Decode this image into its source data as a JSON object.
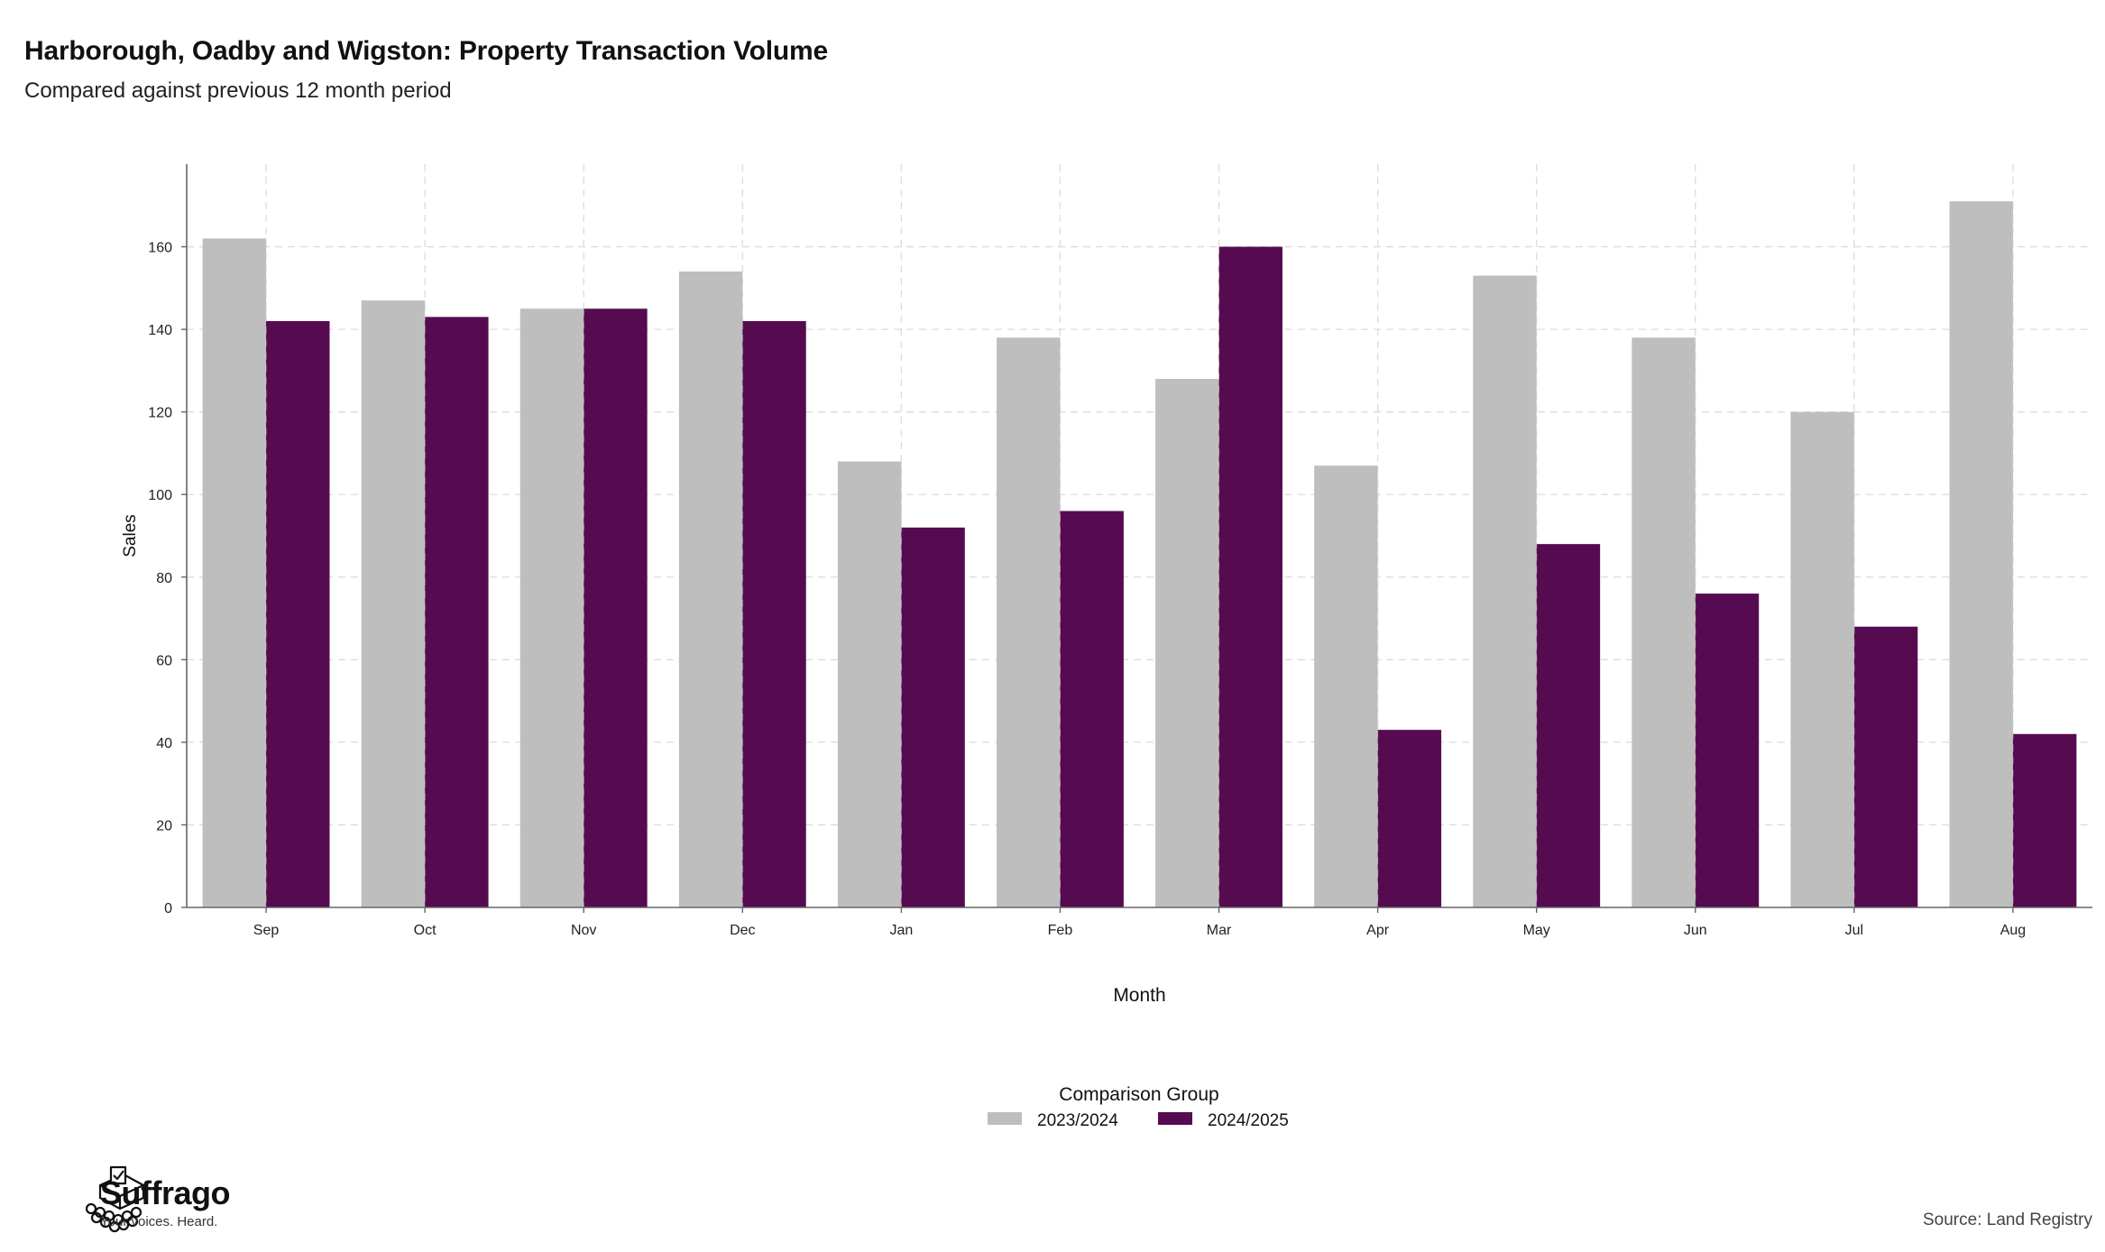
{
  "header": {
    "title": "Harborough, Oadby and Wigston: Property Transaction Volume",
    "subtitle": "Compared against previous 12 month period"
  },
  "brand": {
    "name": "Suffrago",
    "tagline": "Your voices. Heard."
  },
  "footer": {
    "source": "Source: Land Registry"
  },
  "chart_data": {
    "type": "bar",
    "xlabel": "Month",
    "ylabel": "Sales",
    "categories": [
      "Sep",
      "Oct",
      "Nov",
      "Dec",
      "Jan",
      "Feb",
      "Mar",
      "Apr",
      "May",
      "Jun",
      "Jul",
      "Aug"
    ],
    "series": [
      {
        "name": "2023/2024",
        "color": "#bebebe",
        "values": [
          162,
          147,
          145,
          154,
          108,
          138,
          128,
          107,
          153,
          138,
          120,
          171
        ]
      },
      {
        "name": "2024/2025",
        "color": "#560b50",
        "values": [
          142,
          143,
          145,
          142,
          92,
          96,
          160,
          43,
          88,
          76,
          68,
          42
        ]
      }
    ],
    "ylim": [
      0,
      180
    ],
    "yticks": [
      0,
      20,
      40,
      60,
      80,
      100,
      120,
      140,
      160
    ],
    "grid": true,
    "legend": {
      "title": "Comparison Group",
      "placement": "bottom-center"
    }
  }
}
